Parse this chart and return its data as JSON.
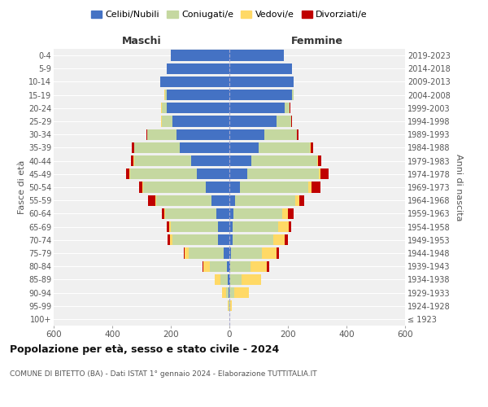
{
  "age_groups": [
    "100+",
    "95-99",
    "90-94",
    "85-89",
    "80-84",
    "75-79",
    "70-74",
    "65-69",
    "60-64",
    "55-59",
    "50-54",
    "45-49",
    "40-44",
    "35-39",
    "30-34",
    "25-29",
    "20-24",
    "15-19",
    "10-14",
    "5-9",
    "0-4"
  ],
  "birth_years": [
    "≤ 1923",
    "1924-1928",
    "1929-1933",
    "1934-1938",
    "1939-1943",
    "1944-1948",
    "1949-1953",
    "1954-1958",
    "1959-1963",
    "1964-1968",
    "1969-1973",
    "1974-1978",
    "1979-1983",
    "1984-1988",
    "1989-1993",
    "1994-1998",
    "1999-2003",
    "2004-2008",
    "2009-2013",
    "2014-2018",
    "2019-2023"
  ],
  "colors": {
    "celibe": "#4472c4",
    "coniugato": "#c5d8a0",
    "vedovo": "#ffd966",
    "divorziato": "#c00000"
  },
  "maschi": {
    "celibe": [
      0,
      1,
      2,
      5,
      8,
      20,
      40,
      40,
      45,
      60,
      80,
      110,
      130,
      170,
      180,
      195,
      215,
      215,
      235,
      215,
      200
    ],
    "coniugato": [
      0,
      2,
      8,
      25,
      60,
      120,
      155,
      160,
      175,
      190,
      215,
      230,
      195,
      155,
      100,
      35,
      15,
      5,
      0,
      0,
      0
    ],
    "vedovo": [
      0,
      2,
      15,
      20,
      20,
      12,
      8,
      5,
      3,
      2,
      2,
      2,
      2,
      1,
      1,
      2,
      2,
      2,
      0,
      0,
      0
    ],
    "divorziato": [
      0,
      0,
      0,
      0,
      3,
      3,
      8,
      10,
      8,
      25,
      12,
      10,
      8,
      8,
      3,
      2,
      1,
      0,
      0,
      0,
      0
    ]
  },
  "femmine": {
    "nubile": [
      0,
      1,
      1,
      2,
      2,
      5,
      10,
      12,
      15,
      20,
      35,
      60,
      75,
      100,
      120,
      160,
      190,
      215,
      220,
      215,
      185
    ],
    "coniugata": [
      0,
      2,
      15,
      40,
      70,
      105,
      140,
      155,
      165,
      205,
      235,
      245,
      225,
      175,
      110,
      50,
      15,
      5,
      0,
      0,
      0
    ],
    "vedova": [
      1,
      5,
      50,
      65,
      55,
      50,
      40,
      35,
      20,
      15,
      10,
      5,
      3,
      2,
      1,
      1,
      1,
      0,
      0,
      0,
      0
    ],
    "divorziata": [
      0,
      0,
      0,
      2,
      8,
      10,
      10,
      10,
      20,
      15,
      30,
      30,
      10,
      10,
      5,
      2,
      1,
      0,
      0,
      0,
      0
    ]
  },
  "title": "Popolazione per età, sesso e stato civile - 2024",
  "subtitle": "COMUNE DI BITETTO (BA) - Dati ISTAT 1° gennaio 2024 - Elaborazione TUTTITALIA.IT",
  "xlabel_left": "Maschi",
  "xlabel_right": "Femmine",
  "ylabel_left": "Fasce di età",
  "ylabel_right": "Anni di nascita",
  "xlim": 600,
  "legend_labels": [
    "Celibi/Nubili",
    "Coniugati/e",
    "Vedovi/e",
    "Divorziati/e"
  ],
  "bg_color": "#ffffff",
  "plot_bg_color": "#f0f0f0",
  "grid_color": "#ffffff"
}
